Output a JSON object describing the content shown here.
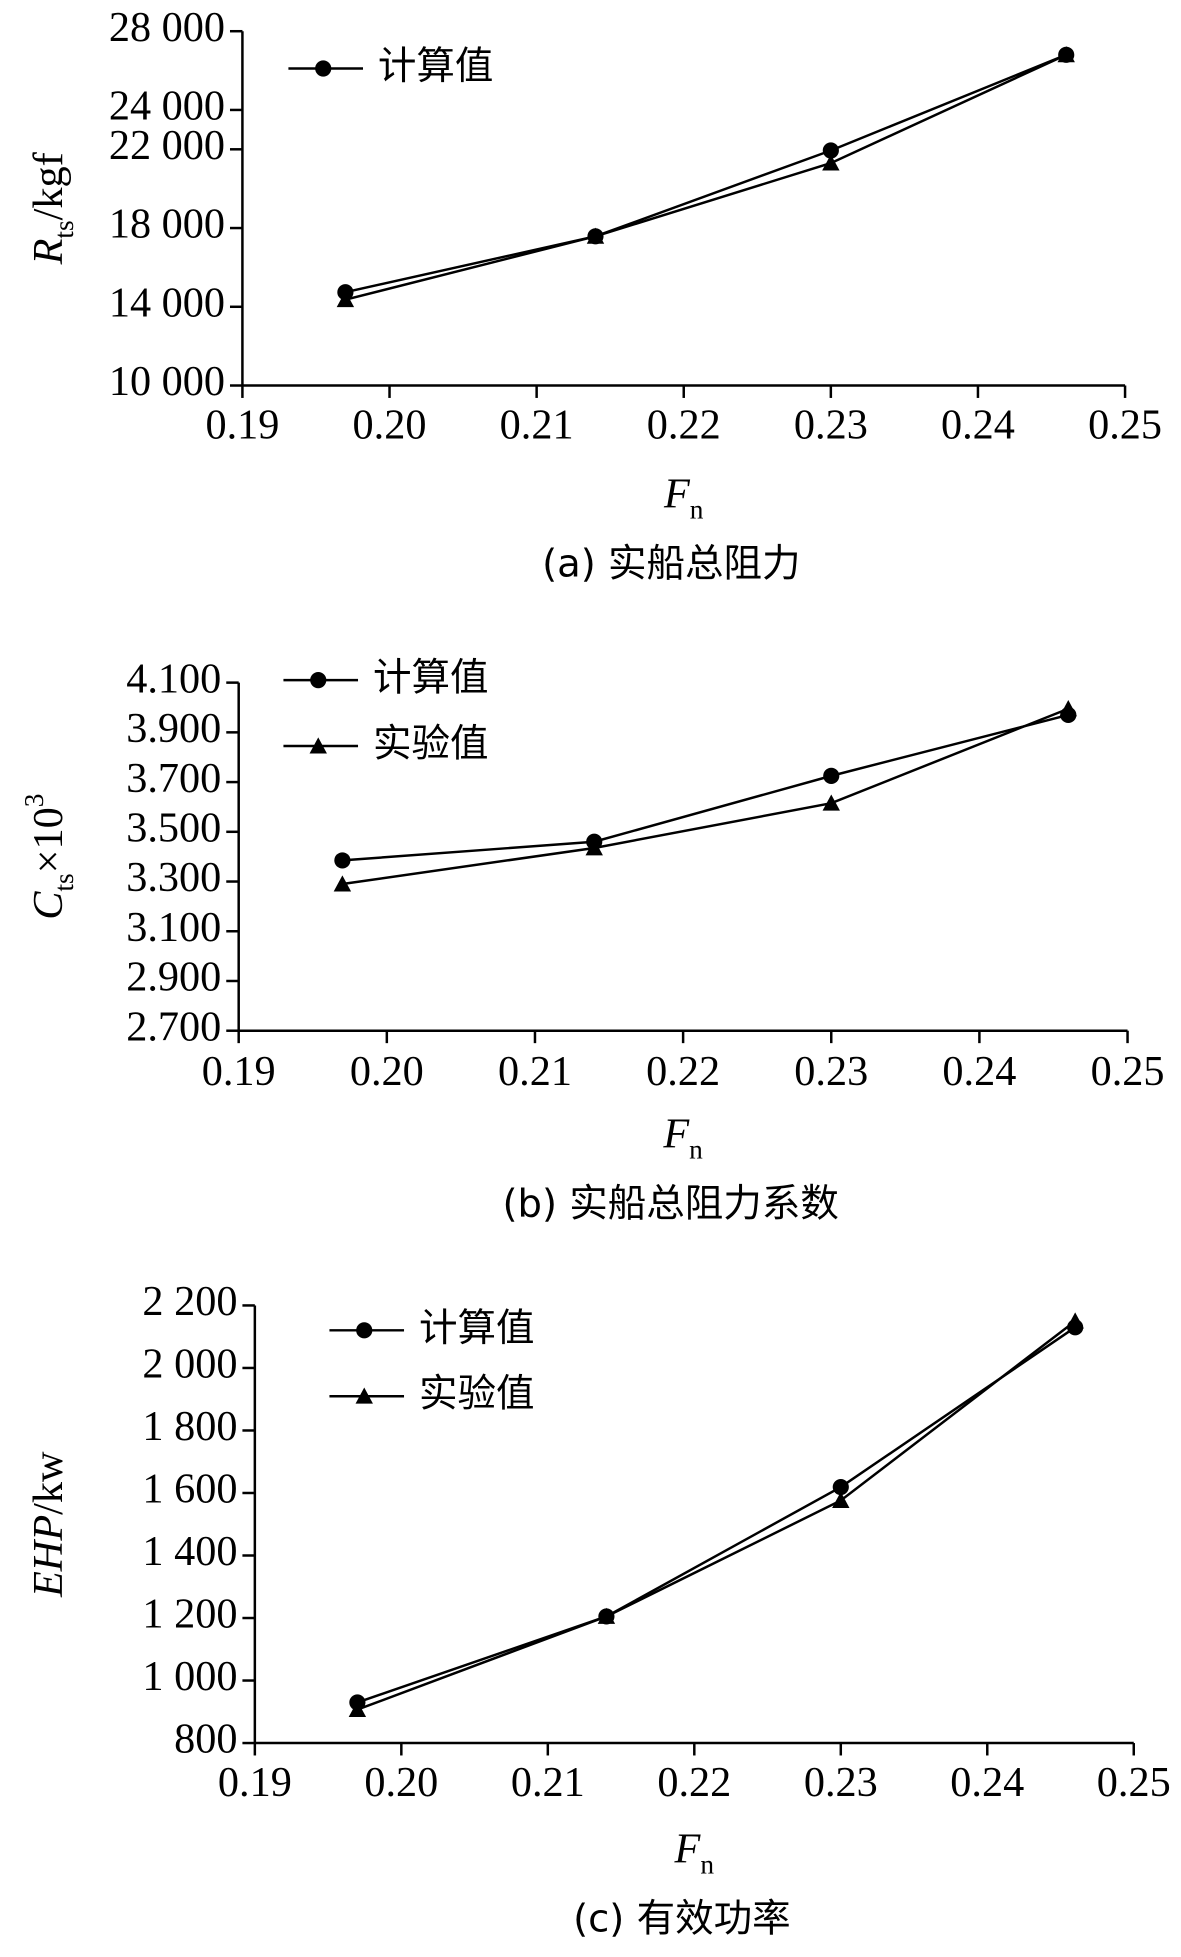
{
  "chart_data": [
    {
      "type": "line",
      "x_label": [
        "F",
        "n"
      ],
      "y_label": [
        "R",
        "ts",
        "/kgf"
      ],
      "caption": "(a) 实船总阻力",
      "x": [
        0.197,
        0.214,
        0.23,
        0.246
      ],
      "series": [
        {
          "name": "计算值",
          "color": "#000000",
          "marker": "circle",
          "values": [
            14740,
            17580,
            21940,
            26800
          ]
        },
        {
          "color": "#000000",
          "marker": "triangle",
          "values": [
            14360,
            17580,
            21300,
            26800
          ]
        }
      ],
      "xlim": [
        0.19,
        0.25
      ],
      "xticks": [
        0.19,
        {
          "value": 0.2,
          "label": "0.20"
        },
        0.21,
        0.22,
        0.23,
        0.24,
        0.25
      ],
      "ylim": [
        10000,
        28000
      ],
      "yticks": [
        {
          "value": 10000,
          "label": "10 000"
        },
        {
          "value": 14000,
          "label": "14 000"
        },
        {
          "value": 18000,
          "label": "18 000"
        },
        {
          "value": 22000,
          "label": "22 000"
        },
        {
          "value": 24000,
          "label": "24 000"
        },
        {
          "value": 28000,
          "label": "28 000"
        }
      ]
    },
    {
      "type": "line",
      "x_label": [
        "F",
        "n"
      ],
      "y_label": [
        "C",
        "ts",
        "×10",
        "3"
      ],
      "caption": "(b) 实船总阻力系数",
      "x": [
        0.197,
        0.214,
        0.23,
        0.246
      ],
      "series": [
        {
          "name": "计算值",
          "color": "#000000",
          "marker": "circle",
          "values": [
            3.385,
            3.46,
            3.725,
            3.97
          ]
        },
        {
          "name": "实验值",
          "color": "#000000",
          "marker": "triangle",
          "values": [
            3.29,
            3.435,
            3.615,
            3.995
          ]
        }
      ],
      "xlim": [
        0.19,
        0.25
      ],
      "xticks": [
        0.19,
        {
          "value": 0.2,
          "label": "0.20"
        },
        0.21,
        0.22,
        0.23,
        0.24,
        0.25
      ],
      "ylim": [
        2.7,
        4.1
      ],
      "yticks": [
        {
          "value": 2.7,
          "label": "2.700"
        },
        {
          "value": 2.9,
          "label": "2.900"
        },
        {
          "value": 3.1,
          "label": "3.100"
        },
        {
          "value": 3.3,
          "label": "3.300"
        },
        {
          "value": 3.5,
          "label": "3.500"
        },
        {
          "value": 3.7,
          "label": "3.700"
        },
        {
          "value": 3.9,
          "label": "3.900"
        },
        {
          "value": 4.1,
          "label": "4.100"
        }
      ]
    },
    {
      "type": "line",
      "x_label": [
        "F",
        "n"
      ],
      "y_label": [
        "EHP",
        "/kw"
      ],
      "caption": "(c) 有效功率",
      "x": [
        0.197,
        0.214,
        0.23,
        0.246
      ],
      "series": [
        {
          "name": "计算值",
          "color": "#000000",
          "marker": "circle",
          "values": [
            930,
            1205,
            1619,
            2130
          ]
        },
        {
          "name": "实验值",
          "color": "#000000",
          "marker": "triangle",
          "values": [
            907,
            1205,
            1576,
            2150
          ]
        }
      ],
      "xlim": [
        0.19,
        0.25
      ],
      "xticks": [
        0.19,
        {
          "value": 0.2,
          "label": "0.20"
        },
        0.21,
        0.22,
        0.23,
        0.24,
        0.25
      ],
      "ylim": [
        800,
        2200
      ],
      "yticks": [
        800,
        {
          "value": 1000,
          "label": "1 000"
        },
        {
          "value": 1200,
          "label": "1 200"
        },
        {
          "value": 1400,
          "label": "1 400"
        },
        {
          "value": 1600,
          "label": "1 600"
        },
        {
          "value": 1800,
          "label": "1 800"
        },
        {
          "value": 2000,
          "label": "2 000"
        },
        {
          "value": 2200,
          "label": "2 200"
        }
      ]
    }
  ]
}
